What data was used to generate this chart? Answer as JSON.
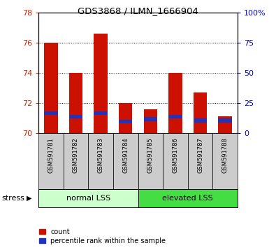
{
  "title": "GDS3868 / ILMN_1666904",
  "samples": [
    "GSM591781",
    "GSM591782",
    "GSM591783",
    "GSM591784",
    "GSM591785",
    "GSM591786",
    "GSM591787",
    "GSM591788"
  ],
  "count_values": [
    76.0,
    74.0,
    76.6,
    72.0,
    71.6,
    74.0,
    72.7,
    71.1
  ],
  "percentile_values": [
    15,
    12,
    15,
    8,
    10,
    12,
    9,
    9
  ],
  "ymin": 70,
  "ymax": 78,
  "yticks": [
    70,
    72,
    74,
    76,
    78
  ],
  "y2ticks": [
    0,
    25,
    50,
    75,
    100
  ],
  "y2labels": [
    "0",
    "25",
    "50",
    "75",
    "100%"
  ],
  "groups": [
    {
      "label": "normal LSS",
      "start": 0,
      "end": 4,
      "color": "#ccffcc"
    },
    {
      "label": "elevated LSS",
      "start": 4,
      "end": 8,
      "color": "#44dd44"
    }
  ],
  "bar_color_red": "#cc1100",
  "bar_color_blue": "#2233bb",
  "bar_width": 0.55,
  "bg_color": "#ffffff",
  "plot_bg": "#ffffff",
  "tick_label_color_left": "#cc2200",
  "tick_label_color_right": "#0000cc",
  "xticklabel_bg": "#cccccc",
  "stress_label": "stress",
  "legend_count": "count",
  "legend_percentile": "percentile rank within the sample"
}
